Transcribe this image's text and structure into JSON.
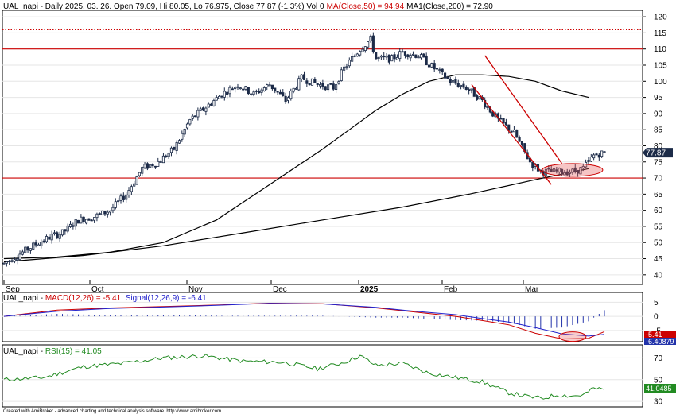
{
  "chart_data": [
    {
      "type": "candlestick",
      "symbol": "UAL_napi",
      "header": {
        "prefix": "UAL_napi - Daily 2025. 03. 26. Open 79.09, Hi 80.05, Lo 76.975, Close 77.87 (-1.3%) Vol 0",
        "ma50_text": "MA(Close,50) = 94.94",
        "ma200_text": "MA1(Close,200) = 72.90"
      },
      "last_close_label": "77.87",
      "ylim": [
        37,
        122
      ],
      "yticks": [
        40,
        45,
        50,
        55,
        60,
        65,
        70,
        75,
        80,
        85,
        90,
        95,
        100,
        105,
        110,
        115,
        120
      ],
      "x_labels": [
        {
          "label": "Sep",
          "bold": false
        },
        {
          "label": "Oct",
          "bold": false
        },
        {
          "label": "Nov",
          "bold": false
        },
        {
          "label": "Dec",
          "bold": false
        },
        {
          "label": "2025",
          "bold": true
        },
        {
          "label": "Feb",
          "bold": false
        },
        {
          "label": "Mar",
          "bold": false
        }
      ],
      "horizontal_lines": [
        {
          "value": 110,
          "style": "solid",
          "color": "#cc0000"
        },
        {
          "value": 70,
          "style": "solid",
          "color": "#cc0000"
        },
        {
          "value": 116,
          "style": "dotted",
          "color": "#cc0000"
        }
      ],
      "anchors": [
        [
          0,
          43.5
        ],
        [
          6,
          46.5
        ],
        [
          12,
          49.5
        ],
        [
          18,
          52
        ],
        [
          22,
          53
        ],
        [
          28,
          57
        ],
        [
          34,
          58
        ],
        [
          40,
          60
        ],
        [
          46,
          65
        ],
        [
          52,
          73
        ],
        [
          58,
          75
        ],
        [
          64,
          79
        ],
        [
          70,
          88
        ],
        [
          76,
          92
        ],
        [
          82,
          96
        ],
        [
          88,
          99
        ],
        [
          94,
          96
        ],
        [
          100,
          99
        ],
        [
          106,
          94
        ],
        [
          112,
          101
        ],
        [
          118,
          99
        ],
        [
          124,
          98
        ],
        [
          128,
          104
        ],
        [
          134,
          110
        ],
        [
          138,
          113
        ],
        [
          140,
          107
        ],
        [
          146,
          107
        ],
        [
          150,
          109
        ],
        [
          156,
          108
        ],
        [
          162,
          104
        ],
        [
          168,
          100
        ],
        [
          174,
          98
        ],
        [
          180,
          94
        ],
        [
          186,
          88
        ],
        [
          192,
          84
        ],
        [
          198,
          75
        ],
        [
          202,
          72
        ],
        [
          208,
          72
        ],
        [
          214,
          72
        ],
        [
          218,
          73
        ],
        [
          222,
          77
        ],
        [
          226,
          78
        ]
      ],
      "ma50": [
        [
          0,
          45
        ],
        [
          20,
          45.5
        ],
        [
          40,
          47
        ],
        [
          60,
          50
        ],
        [
          80,
          57
        ],
        [
          100,
          68
        ],
        [
          120,
          79
        ],
        [
          130,
          85
        ],
        [
          140,
          91
        ],
        [
          150,
          96
        ],
        [
          160,
          100
        ],
        [
          170,
          102
        ],
        [
          180,
          102
        ],
        [
          190,
          101.5
        ],
        [
          200,
          100
        ],
        [
          210,
          97
        ],
        [
          220,
          95
        ]
      ],
      "ma200": [
        [
          0,
          44
        ],
        [
          30,
          46
        ],
        [
          60,
          49
        ],
        [
          90,
          53
        ],
        [
          120,
          57
        ],
        [
          150,
          61
        ],
        [
          175,
          65
        ],
        [
          200,
          69.5
        ],
        [
          220,
          72.9
        ]
      ],
      "channel": [
        [
          [
            181,
            108
          ],
          [
            210,
            74.5
          ]
        ],
        [
          [
            176,
            99
          ],
          [
            206,
            68
          ]
        ]
      ],
      "ellipse": {
        "x": 214,
        "value": 72.5
      }
    },
    {
      "type": "line",
      "title_prefix": "UAL_napi - ",
      "macd_text": "MACD(12,26) = -5.41, ",
      "signal_text": "Signal(12,26,9) = -6.41",
      "yticks": [
        5,
        0,
        -5
      ],
      "ylim": [
        -9,
        8.5
      ],
      "label_macd": "-5.41",
      "label_signal": "-6.40879",
      "series": [
        {
          "name": "MACD(12,26)",
          "color": "#cc0000",
          "points": [
            [
              0,
              0
            ],
            [
              20,
              2.2
            ],
            [
              40,
              3
            ],
            [
              60,
              3.5
            ],
            [
              80,
              4
            ],
            [
              100,
              4.7
            ],
            [
              120,
              4.5
            ],
            [
              140,
              3
            ],
            [
              150,
              2
            ],
            [
              160,
              1
            ],
            [
              170,
              0
            ],
            [
              180,
              -1.5
            ],
            [
              190,
              -3
            ],
            [
              200,
              -6
            ],
            [
              210,
              -8
            ],
            [
              220,
              -7.8
            ],
            [
              226,
              -5.41
            ]
          ]
        },
        {
          "name": "Signal(12,26,9)",
          "color": "#2222cc",
          "points": [
            [
              0,
              0
            ],
            [
              20,
              1.8
            ],
            [
              40,
              2.8
            ],
            [
              60,
              3.3
            ],
            [
              80,
              3.9
            ],
            [
              100,
              4.6
            ],
            [
              120,
              4.4
            ],
            [
              140,
              3.2
            ],
            [
              150,
              2.2
            ],
            [
              160,
              1.4
            ],
            [
              170,
              0.6
            ],
            [
              180,
              -0.8
            ],
            [
              190,
              -2
            ],
            [
              200,
              -4
            ],
            [
              210,
              -6.2
            ],
            [
              220,
              -7
            ],
            [
              226,
              -6.41
            ]
          ]
        }
      ],
      "ellipse": {
        "x": 214,
        "value": -7.2
      }
    },
    {
      "type": "line",
      "title_prefix": "UAL_napi - ",
      "rsi_text": "RSI(15) = 41.05",
      "yticks": [
        70,
        50,
        30
      ],
      "ylim": [
        25,
        82
      ],
      "label_rsi": "41.0485",
      "series": [
        {
          "name": "RSI(15)",
          "color": "#228b22",
          "points": [
            [
              0,
              50
            ],
            [
              15,
              52
            ],
            [
              30,
              62
            ],
            [
              45,
              65
            ],
            [
              60,
              70
            ],
            [
              75,
              72
            ],
            [
              90,
              67
            ],
            [
              105,
              66
            ],
            [
              118,
              60
            ],
            [
              128,
              66
            ],
            [
              134,
              72
            ],
            [
              140,
              63
            ],
            [
              150,
              65
            ],
            [
              160,
              56
            ],
            [
              170,
              52
            ],
            [
              180,
              48
            ],
            [
              190,
              38
            ],
            [
              198,
              34
            ],
            [
              203,
              33
            ],
            [
              208,
              36
            ],
            [
              214,
              35
            ],
            [
              218,
              36
            ],
            [
              222,
              42
            ],
            [
              226,
              41
            ]
          ]
        }
      ]
    }
  ],
  "footer": "Created with AmiBroker - advanced charting and technical analysis software. http://www.amibroker.com"
}
